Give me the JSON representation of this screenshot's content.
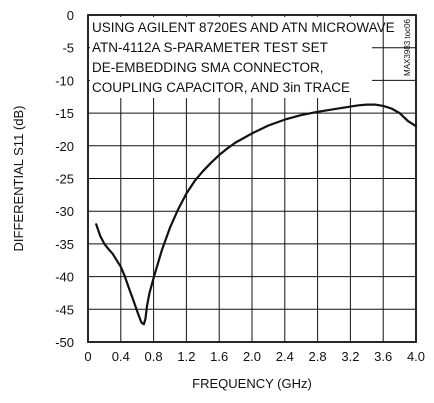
{
  "chart_data": {
    "type": "line",
    "xlabel": "FREQUENCY (GHz)",
    "ylabel": "DIFFERENTIAL S11 (dB)",
    "xlim": [
      0,
      4.0
    ],
    "ylim": [
      -50,
      0
    ],
    "x_ticks": [
      "0",
      "0.4",
      "0.8",
      "1.2",
      "1.6",
      "2.0",
      "2.4",
      "2.8",
      "3.2",
      "3.6",
      "4.0"
    ],
    "y_ticks": [
      "0",
      "-5",
      "-10",
      "-15",
      "-20",
      "-25",
      "-30",
      "-35",
      "-40",
      "-45",
      "-50"
    ],
    "grid": true,
    "annotation_lines": [
      "USING AGILENT 8720ES AND ATN MICROWAVE",
      "ATN-4112A S-PARAMETER TEST SET",
      "DE-EMBEDDING SMA CONNECTOR,",
      "COUPLING CAPACITOR, AND 3in TRACE"
    ],
    "figure_id": "MAX3983 toc06",
    "series": [
      {
        "x": [
          0.1,
          0.15,
          0.2,
          0.25,
          0.3,
          0.35,
          0.4,
          0.45,
          0.5,
          0.55,
          0.6,
          0.65,
          0.68,
          0.7,
          0.72,
          0.75,
          0.8,
          0.9,
          1.0,
          1.1,
          1.2,
          1.3,
          1.4,
          1.5,
          1.6,
          1.7,
          1.8,
          1.9,
          2.0,
          2.2,
          2.4,
          2.6,
          2.8,
          3.0,
          3.2,
          3.3,
          3.4,
          3.5,
          3.6,
          3.7,
          3.8,
          3.9,
          4.0
        ],
        "y": [
          -32.0,
          -33.8,
          -35.0,
          -35.8,
          -36.5,
          -37.5,
          -38.5,
          -40.0,
          -41.8,
          -43.5,
          -45.3,
          -47.0,
          -47.3,
          -46.5,
          -44.5,
          -42.5,
          -40.2,
          -36.0,
          -32.5,
          -29.7,
          -27.3,
          -25.4,
          -23.9,
          -22.6,
          -21.4,
          -20.4,
          -19.5,
          -18.8,
          -18.1,
          -16.9,
          -16.0,
          -15.3,
          -14.8,
          -14.4,
          -14.0,
          -13.8,
          -13.7,
          -13.7,
          -13.9,
          -14.3,
          -15.0,
          -16.2,
          -17.0
        ]
      }
    ]
  }
}
